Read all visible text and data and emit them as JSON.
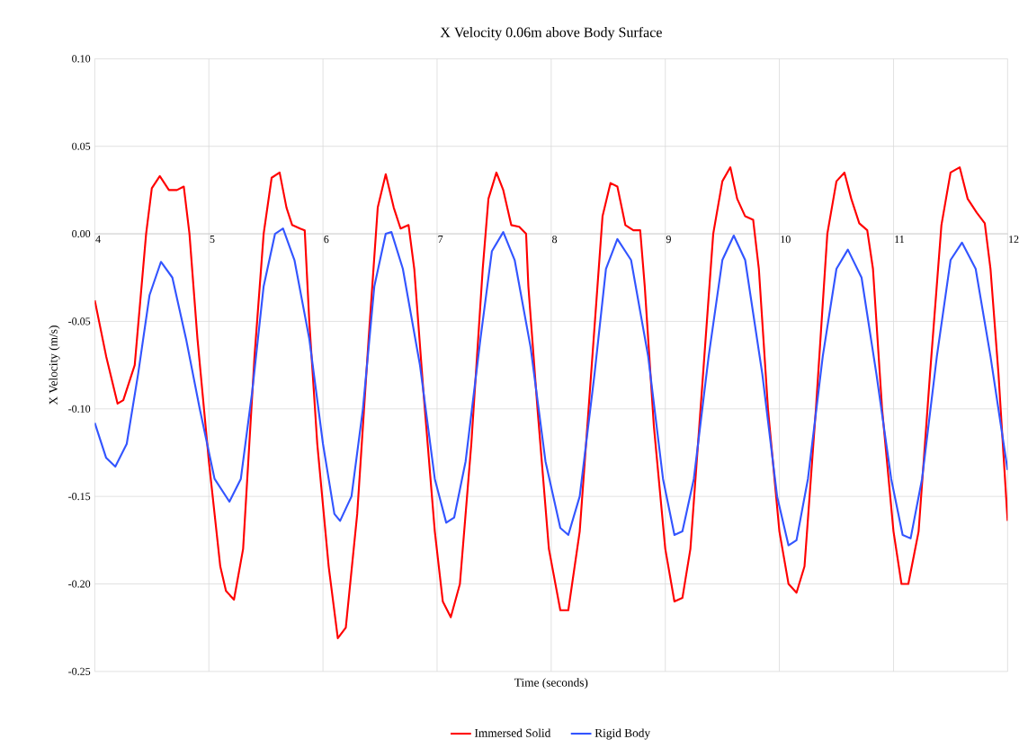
{
  "chart_data": {
    "type": "line",
    "title": "X Velocity 0.06m above Body Surface",
    "xlabel": "Time (seconds)",
    "ylabel": "X Velocity (m/s)",
    "xlim": [
      4,
      12
    ],
    "ylim": [
      -0.25,
      0.1
    ],
    "xticks": [
      4,
      5,
      6,
      7,
      8,
      9,
      10,
      11,
      12
    ],
    "yticks": [
      {
        "value": -0.25,
        "label": "-0.25"
      },
      {
        "value": -0.2,
        "label": "-0.20"
      },
      {
        "value": -0.15,
        "label": "-0.15"
      },
      {
        "value": -0.1,
        "label": "-0.10"
      },
      {
        "value": -0.05,
        "label": "-0.05"
      },
      {
        "value": 0,
        "label": "0.00"
      },
      {
        "value": 0.05,
        "label": "0.05"
      },
      {
        "value": 0.1,
        "label": "0.10"
      }
    ],
    "grid": true,
    "legend": "bottom",
    "series": [
      {
        "name": "Immersed Solid",
        "color": "#ff0000",
        "x": [
          4.0,
          4.1,
          4.2,
          4.25,
          4.35,
          4.45,
          4.5,
          4.57,
          4.65,
          4.72,
          4.78,
          4.83,
          4.9,
          5.0,
          5.1,
          5.15,
          5.22,
          5.3,
          5.4,
          5.48,
          5.55,
          5.62,
          5.68,
          5.73,
          5.8,
          5.84,
          5.88,
          5.95,
          6.05,
          6.13,
          6.2,
          6.3,
          6.4,
          6.48,
          6.55,
          6.62,
          6.68,
          6.75,
          6.8,
          6.88,
          6.98,
          7.05,
          7.12,
          7.2,
          7.3,
          7.4,
          7.45,
          7.52,
          7.58,
          7.65,
          7.72,
          7.78,
          7.8,
          7.88,
          7.98,
          8.08,
          8.15,
          8.25,
          8.35,
          8.45,
          8.52,
          8.58,
          8.65,
          8.72,
          8.78,
          8.82,
          8.9,
          9.0,
          9.08,
          9.15,
          9.22,
          9.32,
          9.42,
          9.5,
          9.57,
          9.63,
          9.7,
          9.77,
          9.82,
          9.9,
          10.0,
          10.08,
          10.15,
          10.22,
          10.32,
          10.42,
          10.5,
          10.57,
          10.63,
          10.7,
          10.77,
          10.82,
          10.9,
          11.0,
          11.07,
          11.13,
          11.22,
          11.32,
          11.42,
          11.5,
          11.58,
          11.65,
          11.73,
          11.8,
          11.85,
          11.92,
          12.0
        ],
        "values": [
          -0.038,
          -0.07,
          -0.097,
          -0.095,
          -0.075,
          0.0,
          0.026,
          0.033,
          0.025,
          0.025,
          0.027,
          0.0,
          -0.06,
          -0.13,
          -0.19,
          -0.204,
          -0.209,
          -0.18,
          -0.07,
          0.0,
          0.032,
          0.035,
          0.015,
          0.005,
          0.003,
          0.002,
          -0.05,
          -0.12,
          -0.19,
          -0.231,
          -0.225,
          -0.16,
          -0.06,
          0.015,
          0.034,
          0.015,
          0.003,
          0.005,
          -0.02,
          -0.09,
          -0.17,
          -0.21,
          -0.219,
          -0.2,
          -0.12,
          -0.02,
          0.02,
          0.035,
          0.025,
          0.005,
          0.004,
          0.0,
          -0.03,
          -0.1,
          -0.18,
          -0.215,
          -0.215,
          -0.17,
          -0.08,
          0.01,
          0.029,
          0.027,
          0.005,
          0.002,
          0.002,
          -0.03,
          -0.11,
          -0.18,
          -0.21,
          -0.208,
          -0.18,
          -0.09,
          0.0,
          0.03,
          0.038,
          0.02,
          0.01,
          0.008,
          -0.02,
          -0.1,
          -0.17,
          -0.2,
          -0.205,
          -0.19,
          -0.1,
          0.0,
          0.03,
          0.035,
          0.02,
          0.006,
          0.002,
          -0.02,
          -0.1,
          -0.17,
          -0.2,
          -0.2,
          -0.17,
          -0.08,
          0.005,
          0.035,
          0.038,
          0.02,
          0.012,
          0.006,
          -0.02,
          -0.08,
          -0.164
        ]
      },
      {
        "name": "Rigid Body",
        "color": "#3355ff",
        "x": [
          4.0,
          4.1,
          4.18,
          4.28,
          4.38,
          4.48,
          4.58,
          4.68,
          4.8,
          4.92,
          5.05,
          5.18,
          5.28,
          5.38,
          5.48,
          5.58,
          5.65,
          5.75,
          5.88,
          6.0,
          6.1,
          6.15,
          6.25,
          6.35,
          6.45,
          6.55,
          6.6,
          6.7,
          6.85,
          6.98,
          7.08,
          7.15,
          7.25,
          7.38,
          7.48,
          7.58,
          7.68,
          7.82,
          7.95,
          8.08,
          8.15,
          8.25,
          8.38,
          8.48,
          8.58,
          8.7,
          8.85,
          8.98,
          9.08,
          9.15,
          9.25,
          9.38,
          9.5,
          9.6,
          9.7,
          9.85,
          9.98,
          10.08,
          10.15,
          10.25,
          10.38,
          10.5,
          10.6,
          10.72,
          10.85,
          10.98,
          11.08,
          11.15,
          11.25,
          11.38,
          11.5,
          11.6,
          11.72,
          11.85,
          12.0
        ],
        "values": [
          -0.108,
          -0.128,
          -0.133,
          -0.12,
          -0.08,
          -0.035,
          -0.016,
          -0.025,
          -0.06,
          -0.1,
          -0.14,
          -0.153,
          -0.14,
          -0.09,
          -0.03,
          0.0,
          0.003,
          -0.015,
          -0.06,
          -0.12,
          -0.16,
          -0.164,
          -0.15,
          -0.1,
          -0.03,
          0.0,
          0.001,
          -0.02,
          -0.075,
          -0.14,
          -0.165,
          -0.162,
          -0.13,
          -0.06,
          -0.01,
          0.001,
          -0.015,
          -0.065,
          -0.13,
          -0.168,
          -0.172,
          -0.15,
          -0.08,
          -0.02,
          -0.003,
          -0.015,
          -0.07,
          -0.14,
          -0.172,
          -0.17,
          -0.14,
          -0.07,
          -0.015,
          -0.001,
          -0.015,
          -0.08,
          -0.15,
          -0.178,
          -0.175,
          -0.14,
          -0.07,
          -0.02,
          -0.009,
          -0.025,
          -0.08,
          -0.14,
          -0.172,
          -0.174,
          -0.14,
          -0.07,
          -0.015,
          -0.005,
          -0.02,
          -0.07,
          -0.135
        ]
      }
    ]
  }
}
